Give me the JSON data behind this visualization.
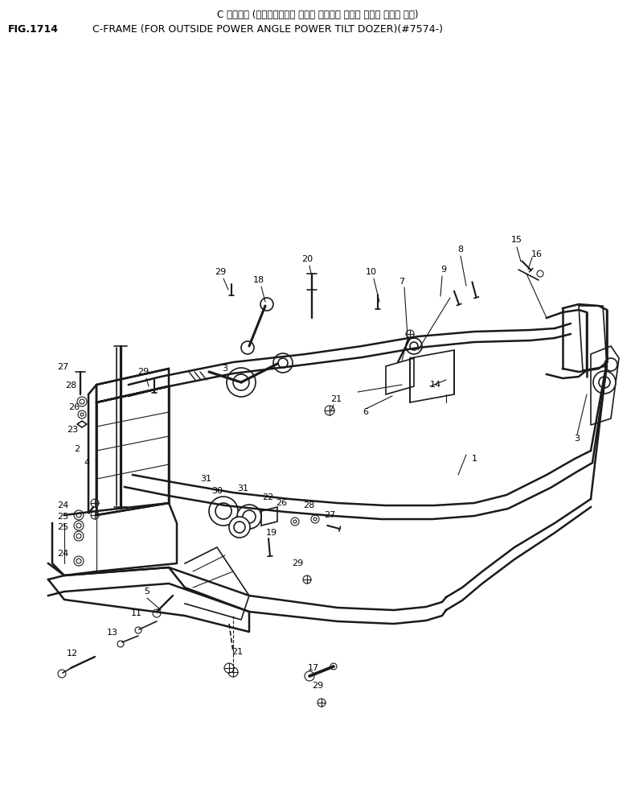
{
  "title_japanese": "C フレーム (アウトサイド・ パワー アングル パワー チルト ドーザ ヨコ)",
  "title_english": "C-FRAME (FOR OUTSIDE POWER ANGLE POWER TILT DOZER)(#7574-)",
  "fig_label": "FIG.1714",
  "bg_color": "#ffffff",
  "line_color": "#1a1a1a",
  "text_color": "#000000",
  "font_size_title_jp": 8.5,
  "font_size_title_en": 9.0,
  "font_size_fig": 9.0,
  "font_size_label": 8.0
}
